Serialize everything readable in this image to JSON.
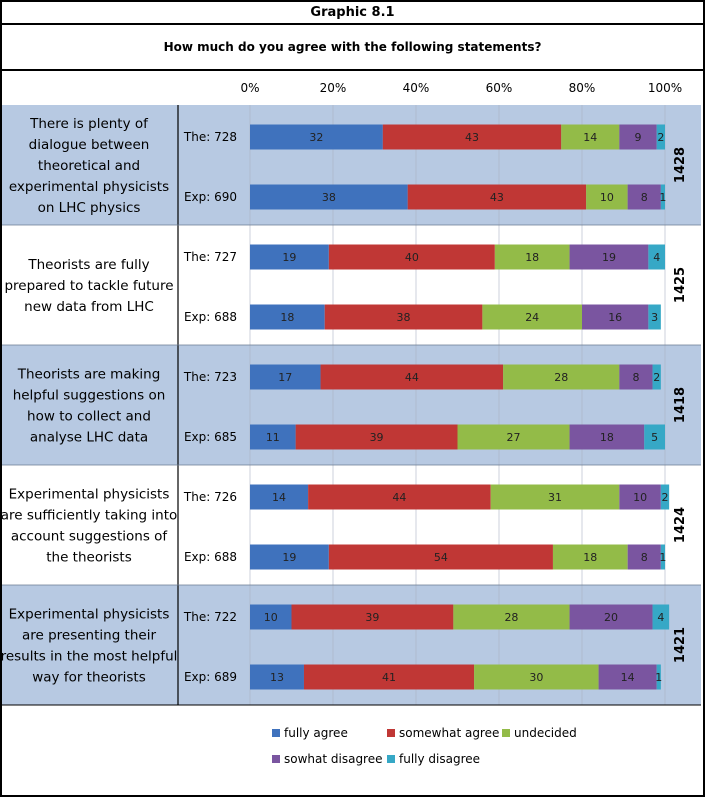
{
  "header": {
    "title": "Graphic 8.1",
    "question": "How much do you agree with the following statements?"
  },
  "colors": {
    "fully_agree": "#3f72bd",
    "somewhat_agree": "#c03735",
    "undecided": "#93bb48",
    "sowhat_disagree": "#7a55a0",
    "fully_disagree": "#36a8c6",
    "band": "#b7c9e2"
  },
  "legend": [
    {
      "label": "fully agree",
      "color": "#3f72bd"
    },
    {
      "label": "somewhat agree",
      "color": "#c03735"
    },
    {
      "label": "undecided",
      "color": "#93bb48"
    },
    {
      "label": "sowhat disagree",
      "color": "#7a55a0"
    },
    {
      "label": "fully disagree",
      "color": "#36a8c6"
    }
  ],
  "chart_data": {
    "type": "bar",
    "orientation": "horizontal",
    "stacked": true,
    "xlim": [
      0,
      100
    ],
    "x_ticks": [
      "0%",
      "20%",
      "40%",
      "60%",
      "80%",
      "100%"
    ],
    "series_names": [
      "fully agree",
      "somewhat agree",
      "undecided",
      "sowhat disagree",
      "fully disagree"
    ],
    "groups": [
      {
        "statement": "There is plenty of dialogue between theoretical and experimental physicists on LHC physics",
        "statement_lines": [
          "There is plenty of",
          "dialogue between",
          "theoretical and",
          "experimental physicists",
          "on LHC physics"
        ],
        "total": "1428",
        "rows": [
          {
            "label": "The: 728",
            "values": [
              32,
              43,
              14,
              9,
              2
            ]
          },
          {
            "label": "Exp: 690",
            "values": [
              38,
              43,
              10,
              8,
              1
            ]
          }
        ]
      },
      {
        "statement": "Theorists are fully prepared to tackle future new data from LHC",
        "statement_lines": [
          "Theorists are fully",
          "prepared to tackle future",
          "new data from LHC"
        ],
        "total": "1425",
        "rows": [
          {
            "label": "The: 727",
            "values": [
              19,
              40,
              18,
              19,
              4
            ]
          },
          {
            "label": "Exp: 688",
            "values": [
              18,
              38,
              24,
              16,
              3
            ]
          }
        ]
      },
      {
        "statement": "Theorists are making helpful suggestions on how to collect and analyse LHC data",
        "statement_lines": [
          "Theorists are making",
          "helpful suggestions on",
          "how to collect and",
          "analyse LHC data"
        ],
        "total": "1418",
        "rows": [
          {
            "label": "The: 723",
            "values": [
              17,
              44,
              28,
              8,
              2
            ]
          },
          {
            "label": "Exp: 685",
            "values": [
              11,
              39,
              27,
              18,
              5
            ]
          }
        ]
      },
      {
        "statement": "Experimental physicists are sufficiently taking into account suggestions of the theorists",
        "statement_lines": [
          "Experimental physicists",
          "are sufficiently taking into",
          "account suggestions of",
          "the theorists"
        ],
        "total": "1424",
        "rows": [
          {
            "label": "The: 726",
            "values": [
              14,
              44,
              31,
              10,
              2
            ]
          },
          {
            "label": "Exp: 688",
            "values": [
              19,
              54,
              18,
              8,
              1
            ]
          }
        ]
      },
      {
        "statement": "Experimental physicists are presenting their results in the most helpful way for theorists",
        "statement_lines": [
          "Experimental physicists",
          "are presenting their",
          "results in the most helpful",
          "way for theorists"
        ],
        "total": "1421",
        "rows": [
          {
            "label": "The: 722",
            "values": [
              10,
              39,
              28,
              20,
              4
            ]
          },
          {
            "label": "Exp: 689",
            "values": [
              13,
              41,
              30,
              14,
              1
            ]
          }
        ]
      }
    ]
  }
}
